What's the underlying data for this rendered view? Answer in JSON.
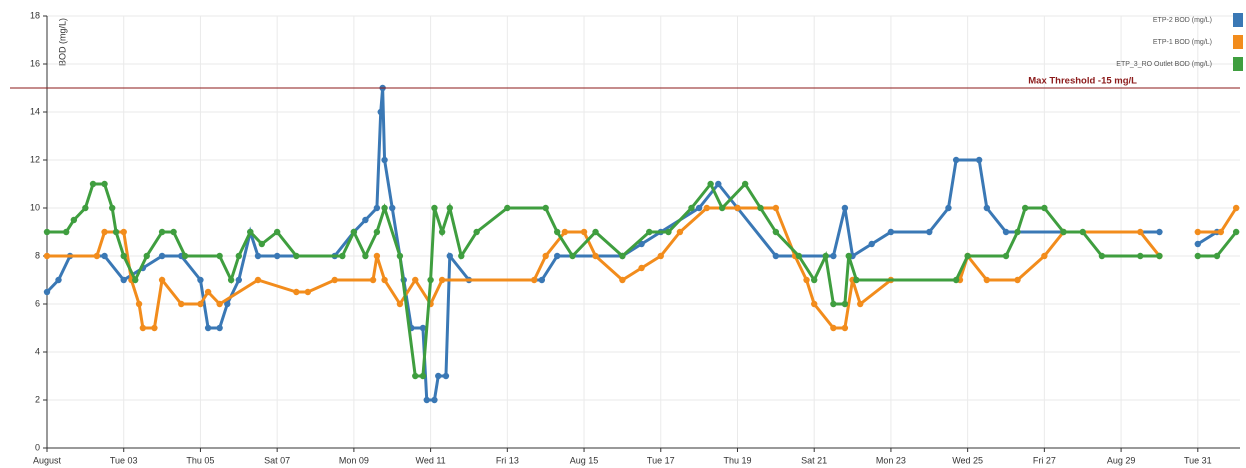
{
  "chart_data": {
    "type": "line",
    "y_label": "BOD (mg/L)",
    "xlim": [
      1,
      32.1
    ],
    "xticks": [
      {
        "value": 1,
        "label": "August"
      },
      {
        "value": 3,
        "label": "Tue 03"
      },
      {
        "value": 5,
        "label": "Thu 05"
      },
      {
        "value": 7,
        "label": "Sat 07"
      },
      {
        "value": 9,
        "label": "Mon 09"
      },
      {
        "value": 11,
        "label": "Wed 11"
      },
      {
        "value": 13,
        "label": "Fri 13"
      },
      {
        "value": 15,
        "label": "Aug 15"
      },
      {
        "value": 17,
        "label": "Tue 17"
      },
      {
        "value": 19,
        "label": "Thu 19"
      },
      {
        "value": 21,
        "label": "Sat 21"
      },
      {
        "value": 23,
        "label": "Mon 23"
      },
      {
        "value": 25,
        "label": "Wed 25"
      },
      {
        "value": 27,
        "label": "Fri 27"
      },
      {
        "value": 29,
        "label": "Aug 29"
      },
      {
        "value": 31,
        "label": "Tue 31"
      }
    ],
    "ylim": [
      0,
      18
    ],
    "yticks": [
      0,
      2,
      4,
      6,
      8,
      10,
      12,
      14,
      16,
      18
    ],
    "grid": true,
    "legend": "top-right",
    "threshold": {
      "value": 15,
      "label": "Max Threshold -15 mg/L",
      "color": "#8b1a1a"
    },
    "series": [
      {
        "name": "ETP-2 BOD (mg/L)",
        "color": "#3a78b5",
        "x": [
          1.0,
          1.3,
          1.6,
          2.5,
          3.0,
          3.5,
          4.0,
          4.5,
          5.0,
          5.2,
          5.5,
          5.7,
          6.0,
          6.3,
          6.5,
          7.0,
          8.5,
          9.0,
          9.3,
          9.6,
          9.7,
          9.75,
          9.8,
          10.0,
          10.3,
          10.5,
          10.8,
          10.9,
          11.1,
          11.2,
          11.4,
          11.5,
          12.0,
          13.9,
          14.3,
          16.0,
          16.5,
          17.0,
          18.0,
          18.5,
          19.0,
          20.0,
          21.5,
          21.8,
          22.0,
          22.5,
          23.0,
          24.0,
          24.5,
          24.7,
          25.3,
          25.5,
          26.0,
          30.0,
          null,
          31.0,
          31.5
        ],
        "values": [
          6.5,
          7,
          8,
          8,
          7,
          7.5,
          8,
          8,
          7,
          5,
          5,
          6,
          7,
          9,
          8,
          8,
          8,
          9,
          9.5,
          10,
          14,
          15,
          12,
          10,
          7,
          5,
          5,
          2,
          2,
          3,
          3,
          8,
          7,
          7,
          8,
          8,
          8.5,
          9,
          10,
          11,
          10,
          8,
          8,
          10,
          8,
          8.5,
          9,
          9,
          10,
          12,
          12,
          10,
          9,
          9,
          null,
          8.5,
          9
        ]
      },
      {
        "name": "ETP-1 BOD (mg/L)",
        "color": "#f28c1c",
        "x": [
          1.0,
          2.3,
          2.5,
          3.0,
          3.2,
          3.4,
          3.5,
          3.8,
          4.0,
          4.5,
          5.0,
          5.2,
          5.5,
          6.5,
          7.5,
          7.8,
          8.5,
          9.5,
          9.6,
          9.8,
          10.2,
          10.6,
          11.0,
          11.3,
          13.7,
          14.0,
          14.5,
          15.0,
          15.3,
          16.0,
          16.5,
          17.0,
          17.5,
          18.2,
          19.0,
          20.0,
          20.5,
          20.8,
          21.0,
          21.5,
          21.8,
          22.0,
          22.2,
          23.0,
          24.8,
          25.0,
          25.5,
          26.3,
          27.0,
          27.5,
          29.5,
          30.0,
          null,
          31.0,
          31.6,
          32.0
        ],
        "values": [
          8,
          8,
          9,
          9,
          7,
          6,
          5,
          5,
          7,
          6,
          6,
          6.5,
          6,
          7,
          6.5,
          6.5,
          7,
          7,
          8,
          7,
          6,
          7,
          6,
          7,
          7,
          8,
          9,
          9,
          8,
          7,
          7.5,
          8,
          9,
          10,
          10,
          10,
          8,
          7,
          6,
          5,
          5,
          7,
          6,
          7,
          7,
          8,
          7,
          7,
          8,
          9,
          9,
          8,
          null,
          9,
          9,
          10
        ]
      },
      {
        "name": "ETP_3_RO Outlet BOD (mg/L)",
        "color": "#3f9e3f",
        "x": [
          1.0,
          1.5,
          1.7,
          2.0,
          2.2,
          2.5,
          2.7,
          2.8,
          3.0,
          3.3,
          3.6,
          4.0,
          4.3,
          4.6,
          5.5,
          5.8,
          6.0,
          6.3,
          6.6,
          7.0,
          7.5,
          8.7,
          9.0,
          9.3,
          9.6,
          9.8,
          10.2,
          10.6,
          10.8,
          11.0,
          11.1,
          11.3,
          11.5,
          11.8,
          12.2,
          13.0,
          14.0,
          14.3,
          14.7,
          15.3,
          16.0,
          16.7,
          17.2,
          17.8,
          18.3,
          18.6,
          19.2,
          19.6,
          20.0,
          20.6,
          21.0,
          21.3,
          21.5,
          21.8,
          21.9,
          22.1,
          24.7,
          25.0,
          26.0,
          26.3,
          26.5,
          27.0,
          27.5,
          28.0,
          28.5,
          29.5,
          30.0,
          null,
          31.0,
          31.5,
          32.0
        ],
        "values": [
          9,
          9,
          9.5,
          10,
          11,
          11,
          10,
          9,
          8,
          7,
          8,
          9,
          9,
          8,
          8,
          7,
          8,
          9,
          8.5,
          9,
          8,
          8,
          9,
          8,
          9,
          10,
          8,
          3,
          3,
          7,
          10,
          9,
          10,
          8,
          9,
          10,
          10,
          9,
          8,
          9,
          8,
          9,
          9,
          10,
          11,
          10,
          11,
          10,
          9,
          8,
          7,
          8,
          6,
          6,
          8,
          7,
          7,
          8,
          8,
          9,
          10,
          10,
          9,
          9,
          8,
          8,
          8,
          null,
          8,
          8,
          9
        ]
      }
    ]
  }
}
